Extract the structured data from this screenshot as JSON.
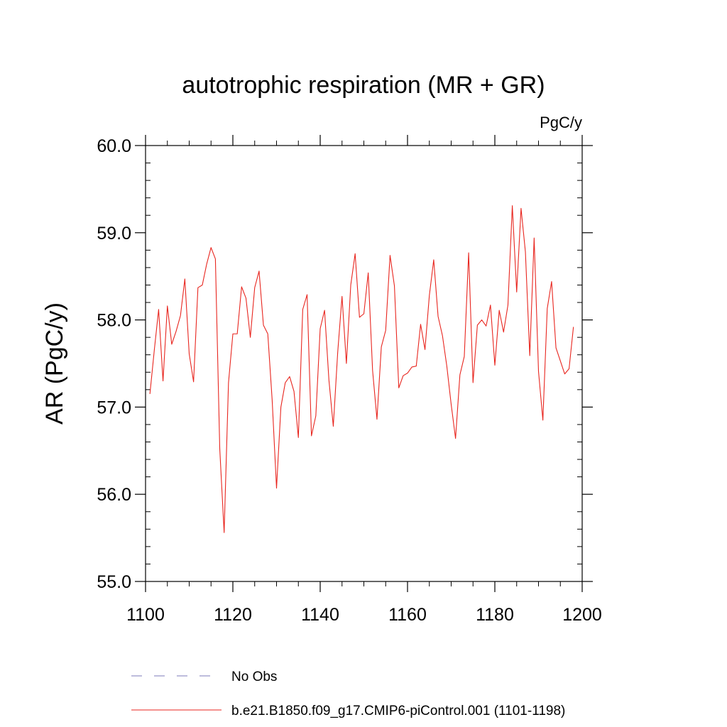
{
  "chart_data": {
    "type": "line",
    "title": "autotrophic respiration (MR + GR)",
    "units": "PgC/y",
    "xlabel": "",
    "ylabel": "AR  (PgC/y)",
    "xlim": [
      1100,
      1200
    ],
    "ylim": [
      55.0,
      60.0
    ],
    "xticks": [
      1100,
      1120,
      1140,
      1160,
      1180,
      1200
    ],
    "xtick_labels": [
      "1100",
      "1120",
      "1140",
      "1160",
      "1180",
      "1200"
    ],
    "yticks": [
      55.0,
      56.0,
      57.0,
      58.0,
      59.0,
      60.0
    ],
    "ytick_labels": [
      "55.0",
      "56.0",
      "57.0",
      "58.0",
      "59.0",
      "60.0"
    ],
    "grid": false,
    "legend": [
      {
        "label": "No Obs",
        "color": "#7b78b8",
        "style": "dashed"
      },
      {
        "label": "b.e21.B1850.f09_g17.CMIP6-piControl.001 (1101-1198)",
        "color": "#e8261f",
        "style": "solid"
      }
    ],
    "series": [
      {
        "name": "b.e21.B1850.f09_g17.CMIP6-piControl.001 (1101-1198)",
        "color": "#e8261f",
        "x": [
          1101,
          1102,
          1103,
          1104,
          1105,
          1106,
          1107,
          1108,
          1109,
          1110,
          1111,
          1112,
          1113,
          1114,
          1115,
          1116,
          1117,
          1118,
          1119,
          1120,
          1121,
          1122,
          1123,
          1124,
          1125,
          1126,
          1127,
          1128,
          1129,
          1130,
          1131,
          1132,
          1133,
          1134,
          1135,
          1136,
          1137,
          1138,
          1139,
          1140,
          1141,
          1142,
          1143,
          1144,
          1145,
          1146,
          1147,
          1148,
          1149,
          1150,
          1151,
          1152,
          1153,
          1154,
          1155,
          1156,
          1157,
          1158,
          1159,
          1160,
          1161,
          1162,
          1163,
          1164,
          1165,
          1166,
          1167,
          1168,
          1169,
          1170,
          1171,
          1172,
          1173,
          1174,
          1175,
          1176,
          1177,
          1178,
          1179,
          1180,
          1181,
          1182,
          1183,
          1184,
          1185,
          1186,
          1187,
          1188,
          1189,
          1190,
          1191,
          1192,
          1193,
          1194,
          1195,
          1196,
          1197,
          1198
        ],
        "values": [
          57.15,
          57.65,
          58.12,
          57.3,
          58.16,
          57.72,
          57.87,
          58.05,
          58.47,
          57.61,
          57.29,
          58.37,
          58.4,
          58.64,
          58.83,
          58.7,
          56.52,
          55.56,
          57.28,
          57.84,
          57.84,
          58.38,
          58.25,
          57.8,
          58.37,
          58.56,
          57.94,
          57.84,
          57.08,
          56.07,
          57.0,
          57.28,
          57.35,
          57.18,
          56.65,
          58.12,
          58.29,
          56.67,
          56.9,
          57.9,
          58.11,
          57.31,
          56.78,
          57.62,
          58.27,
          57.5,
          58.4,
          58.76,
          58.03,
          58.07,
          58.54,
          57.42,
          56.86,
          57.69,
          57.88,
          58.74,
          58.39,
          57.22,
          57.36,
          57.39,
          57.46,
          57.47,
          57.95,
          57.66,
          58.28,
          58.69,
          58.04,
          57.82,
          57.47,
          57.03,
          56.64,
          57.37,
          57.58,
          58.77,
          57.28,
          57.94,
          58.0,
          57.93,
          58.17,
          57.48,
          58.11,
          57.86,
          58.17,
          59.31,
          58.32,
          59.28,
          58.78,
          57.59,
          58.94,
          57.41,
          56.85,
          58.13,
          58.44,
          57.68,
          57.53,
          57.38,
          57.44,
          57.92
        ]
      }
    ]
  }
}
